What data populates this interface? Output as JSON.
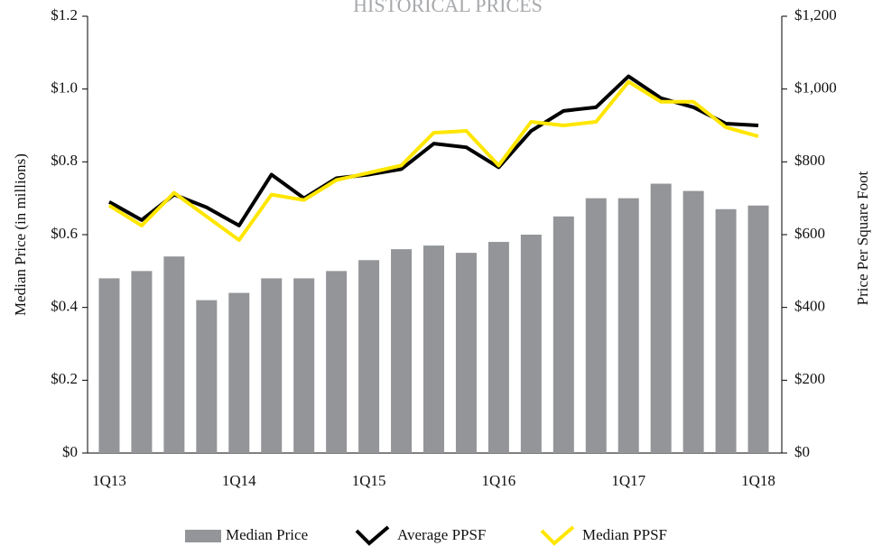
{
  "chart_data": {
    "type": "bar_line",
    "title": "HISTORICAL PRICES",
    "ylabel": "Median Price (in millions)",
    "y2label": "Price Per Square Foot",
    "categories": [
      "1Q13",
      null,
      null,
      null,
      "1Q14",
      null,
      null,
      null,
      "1Q15",
      null,
      null,
      null,
      "1Q16",
      null,
      null,
      null,
      "1Q17",
      null,
      null,
      null,
      "1Q18"
    ],
    "series": [
      {
        "name": "Median Price",
        "type": "bar",
        "color": "#939598",
        "axis": "y",
        "values": [
          0.48,
          0.5,
          0.54,
          0.42,
          0.44,
          0.48,
          0.48,
          0.5,
          0.53,
          0.56,
          0.57,
          0.55,
          0.58,
          0.6,
          0.65,
          0.7,
          0.7,
          0.74,
          0.72,
          0.67,
          0.68
        ]
      },
      {
        "name": "Average PPSF",
        "type": "line",
        "color": "#000000",
        "axis": "y2",
        "values": [
          690,
          640,
          710,
          675,
          625,
          765,
          700,
          755,
          765,
          780,
          850,
          840,
          785,
          885,
          940,
          950,
          1035,
          975,
          950,
          905,
          900
        ]
      },
      {
        "name": "Median PPSF",
        "type": "line",
        "color": "#ffe600",
        "axis": "y2",
        "values": [
          680,
          625,
          715,
          650,
          585,
          710,
          695,
          750,
          770,
          790,
          880,
          885,
          790,
          910,
          900,
          910,
          1020,
          965,
          965,
          895,
          870
        ]
      }
    ],
    "ylim": [
      0,
      1.2
    ],
    "yticks": [
      {
        "value": 0,
        "label": "$0"
      },
      {
        "value": 0.2,
        "label": "$0.2"
      },
      {
        "value": 0.4,
        "label": "$0.4"
      },
      {
        "value": 0.6,
        "label": "$0.6"
      },
      {
        "value": 0.8,
        "label": "$0.8"
      },
      {
        "value": 1.0,
        "label": "$1.0"
      },
      {
        "value": 1.2,
        "label": "$1.2"
      }
    ],
    "y2lim": [
      0,
      1200
    ],
    "y2ticks": [
      {
        "value": 0,
        "label": "$0"
      },
      {
        "value": 200,
        "label": "$200"
      },
      {
        "value": 400,
        "label": "$400"
      },
      {
        "value": 600,
        "label": "$600"
      },
      {
        "value": 800,
        "label": "$800"
      },
      {
        "value": 1000,
        "label": "$1,000"
      },
      {
        "value": 1200,
        "label": "$1,200"
      }
    ],
    "legend": "bottom"
  }
}
